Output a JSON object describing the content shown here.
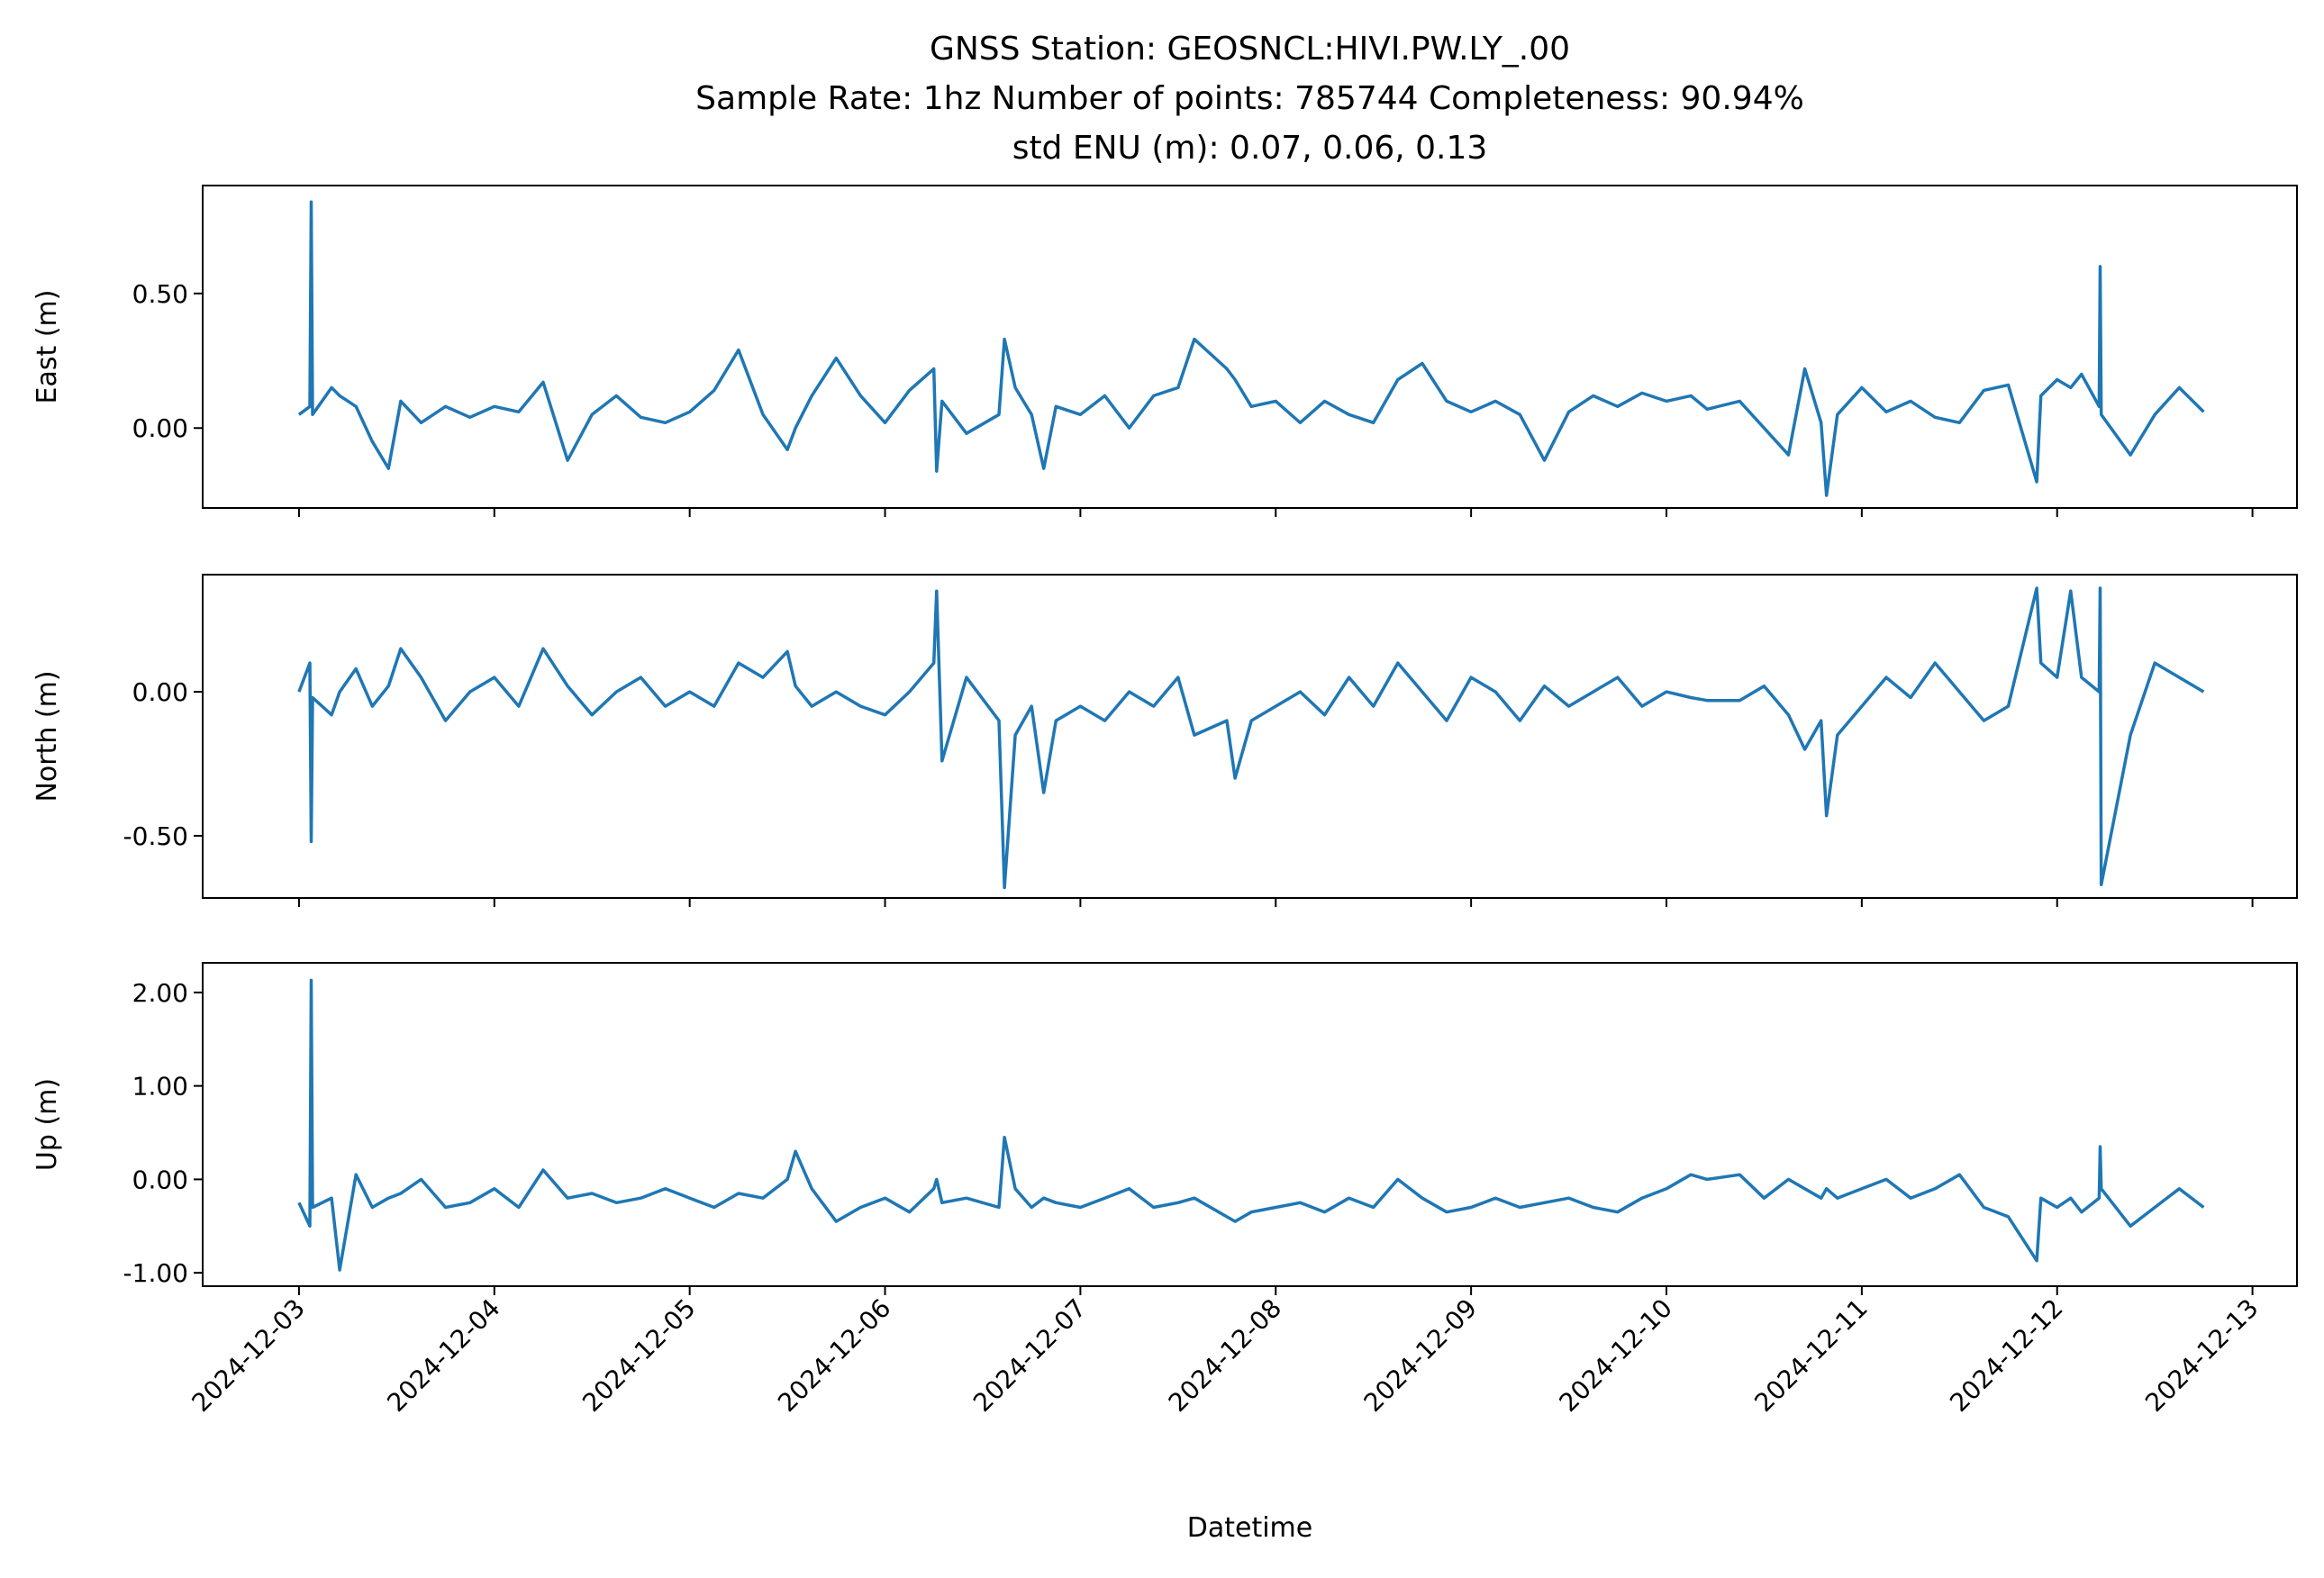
{
  "chart_data": [
    {
      "type": "line",
      "title": [
        "GNSS Station: GEOSNCL:HIVI.PW.LY_.00",
        "Sample Rate: 1hz   Number of points: 785744    Completeness:  90.94%",
        "std ENU (m):  0.07, 0.06, 0.13"
      ],
      "ylabel": "East (m)",
      "color": "#1f77b4",
      "xlim": [
        "2024-12-02 12:10",
        "2024-12-13 05:28"
      ],
      "ylim": [
        -0.297,
        0.901
      ],
      "yticks": [
        {
          "value": 0,
          "label": "0.00"
        },
        {
          "value": 0.5,
          "label": "0.50"
        }
      ],
      "x": [
        "2024-12-03 00:00",
        "2024-12-03 01:20",
        "2024-12-03 01:30",
        "2024-12-03 01:40",
        "2024-12-03 04:00",
        "2024-12-03 05:00",
        "2024-12-03 07:00",
        "2024-12-03 09:00",
        "2024-12-03 11:00",
        "2024-12-03 12:30",
        "2024-12-03 15:00",
        "2024-12-03 18:00",
        "2024-12-03 21:00",
        "2024-12-04 00:00",
        "2024-12-04 03:00",
        "2024-12-04 06:00",
        "2024-12-04 09:00",
        "2024-12-04 12:00",
        "2024-12-04 15:00",
        "2024-12-04 18:00",
        "2024-12-04 21:00",
        "2024-12-05 00:00",
        "2024-12-05 03:00",
        "2024-12-05 06:00",
        "2024-12-05 09:00",
        "2024-12-05 12:00",
        "2024-12-05 13:00",
        "2024-12-05 15:00",
        "2024-12-05 18:00",
        "2024-12-05 21:00",
        "2024-12-06 00:00",
        "2024-12-06 03:00",
        "2024-12-06 06:00",
        "2024-12-06 06:20",
        "2024-12-06 07:00",
        "2024-12-06 10:00",
        "2024-12-06 14:00",
        "2024-12-06 14:40",
        "2024-12-06 16:00",
        "2024-12-06 18:00",
        "2024-12-06 19:30",
        "2024-12-06 21:00",
        "2024-12-07 00:00",
        "2024-12-07 03:00",
        "2024-12-07 06:00",
        "2024-12-07 09:00",
        "2024-12-07 12:00",
        "2024-12-07 14:00",
        "2024-12-07 18:00",
        "2024-12-07 19:00",
        "2024-12-07 21:00",
        "2024-12-08 00:00",
        "2024-12-08 03:00",
        "2024-12-08 06:00",
        "2024-12-08 09:00",
        "2024-12-08 12:00",
        "2024-12-08 15:00",
        "2024-12-08 18:00",
        "2024-12-08 21:00",
        "2024-12-09 00:00",
        "2024-12-09 03:00",
        "2024-12-09 06:00",
        "2024-12-09 09:00",
        "2024-12-09 12:00",
        "2024-12-09 15:00",
        "2024-12-09 18:00",
        "2024-12-09 21:00",
        "2024-12-10 00:00",
        "2024-12-10 03:00",
        "2024-12-10 05:00",
        "2024-12-10 09:00",
        "2024-12-10 12:00",
        "2024-12-10 15:00",
        "2024-12-10 17:00",
        "2024-12-10 19:00",
        "2024-12-10 19:40",
        "2024-12-10 21:00",
        "2024-12-11 00:00",
        "2024-12-11 03:00",
        "2024-12-11 06:00",
        "2024-12-11 09:00",
        "2024-12-11 12:00",
        "2024-12-11 15:00",
        "2024-12-11 18:00",
        "2024-12-11 21:30",
        "2024-12-11 22:00",
        "2024-12-12 00:00",
        "2024-12-12 01:40",
        "2024-12-12 03:00",
        "2024-12-12 05:10",
        "2024-12-12 05:17",
        "2024-12-12 05:25",
        "2024-12-12 09:00",
        "2024-12-12 12:00",
        "2024-12-12 15:00",
        "2024-12-12 18:00"
      ],
      "values": [
        0.05,
        0.08,
        0.84,
        0.05,
        0.15,
        0.12,
        0.08,
        -0.05,
        -0.15,
        0.1,
        0.02,
        0.08,
        0.04,
        0.08,
        0.06,
        0.17,
        -0.12,
        0.05,
        0.12,
        0.04,
        0.02,
        0.06,
        0.14,
        0.29,
        0.05,
        -0.08,
        0.0,
        0.12,
        0.26,
        0.12,
        0.02,
        0.14,
        0.22,
        -0.16,
        0.1,
        -0.02,
        0.05,
        0.33,
        0.15,
        0.05,
        -0.15,
        0.08,
        0.05,
        0.12,
        0.0,
        0.12,
        0.15,
        0.33,
        0.22,
        0.18,
        0.08,
        0.1,
        0.02,
        0.1,
        0.05,
        0.02,
        0.18,
        0.24,
        0.1,
        0.06,
        0.1,
        0.05,
        -0.12,
        0.06,
        0.12,
        0.08,
        0.13,
        0.1,
        0.12,
        0.07,
        0.1,
        0.0,
        -0.1,
        0.22,
        0.02,
        -0.25,
        0.05,
        0.15,
        0.06,
        0.1,
        0.04,
        0.02,
        0.14,
        0.16,
        -0.2,
        0.12,
        0.18,
        0.15,
        0.2,
        0.08,
        0.6,
        0.05,
        -0.1,
        0.05,
        0.15,
        0.06
      ]
    },
    {
      "type": "line",
      "ylabel": "North (m)",
      "color": "#1f77b4",
      "xlim": [
        "2024-12-02 12:10",
        "2024-12-13 05:28"
      ],
      "ylim": [
        -0.716,
        0.407
      ],
      "yticks": [
        {
          "value": -0.5,
          "label": "-0.50"
        },
        {
          "value": 0,
          "label": "0.00"
        }
      ],
      "x": [
        "2024-12-03 00:00",
        "2024-12-03 01:20",
        "2024-12-03 01:30",
        "2024-12-03 01:40",
        "2024-12-03 04:00",
        "2024-12-03 05:00",
        "2024-12-03 07:00",
        "2024-12-03 09:00",
        "2024-12-03 11:00",
        "2024-12-03 12:30",
        "2024-12-03 15:00",
        "2024-12-03 18:00",
        "2024-12-03 21:00",
        "2024-12-04 00:00",
        "2024-12-04 03:00",
        "2024-12-04 06:00",
        "2024-12-04 09:00",
        "2024-12-04 12:00",
        "2024-12-04 15:00",
        "2024-12-04 18:00",
        "2024-12-04 21:00",
        "2024-12-05 00:00",
        "2024-12-05 03:00",
        "2024-12-05 06:00",
        "2024-12-05 09:00",
        "2024-12-05 12:00",
        "2024-12-05 13:00",
        "2024-12-05 15:00",
        "2024-12-05 18:00",
        "2024-12-05 21:00",
        "2024-12-06 00:00",
        "2024-12-06 03:00",
        "2024-12-06 06:00",
        "2024-12-06 06:20",
        "2024-12-06 07:00",
        "2024-12-06 10:00",
        "2024-12-06 14:00",
        "2024-12-06 14:40",
        "2024-12-06 16:00",
        "2024-12-06 18:00",
        "2024-12-06 19:30",
        "2024-12-06 21:00",
        "2024-12-07 00:00",
        "2024-12-07 03:00",
        "2024-12-07 06:00",
        "2024-12-07 09:00",
        "2024-12-07 12:00",
        "2024-12-07 14:00",
        "2024-12-07 18:00",
        "2024-12-07 19:00",
        "2024-12-07 21:00",
        "2024-12-08 00:00",
        "2024-12-08 03:00",
        "2024-12-08 06:00",
        "2024-12-08 09:00",
        "2024-12-08 12:00",
        "2024-12-08 15:00",
        "2024-12-08 18:00",
        "2024-12-08 21:00",
        "2024-12-09 00:00",
        "2024-12-09 03:00",
        "2024-12-09 06:00",
        "2024-12-09 09:00",
        "2024-12-09 12:00",
        "2024-12-09 15:00",
        "2024-12-09 18:00",
        "2024-12-09 21:00",
        "2024-12-10 00:00",
        "2024-12-10 03:00",
        "2024-12-10 05:00",
        "2024-12-10 09:00",
        "2024-12-10 12:00",
        "2024-12-10 15:00",
        "2024-12-10 17:00",
        "2024-12-10 19:00",
        "2024-12-10 19:40",
        "2024-12-10 21:00",
        "2024-12-11 00:00",
        "2024-12-11 03:00",
        "2024-12-11 06:00",
        "2024-12-11 09:00",
        "2024-12-11 12:00",
        "2024-12-11 15:00",
        "2024-12-11 18:00",
        "2024-12-11 21:30",
        "2024-12-11 22:00",
        "2024-12-12 00:00",
        "2024-12-12 01:40",
        "2024-12-12 03:00",
        "2024-12-12 05:10",
        "2024-12-12 05:17",
        "2024-12-12 05:25",
        "2024-12-12 09:00",
        "2024-12-12 12:00",
        "2024-12-12 15:00",
        "2024-12-12 18:00"
      ],
      "values": [
        0.0,
        0.1,
        -0.52,
        -0.02,
        -0.08,
        0.0,
        0.08,
        -0.05,
        0.02,
        0.15,
        0.05,
        -0.1,
        0.0,
        0.05,
        -0.05,
        0.15,
        0.02,
        -0.08,
        0.0,
        0.05,
        -0.05,
        0.0,
        -0.05,
        0.1,
        0.05,
        0.14,
        0.02,
        -0.05,
        0.0,
        -0.05,
        -0.08,
        0.0,
        0.1,
        0.35,
        -0.24,
        0.05,
        -0.1,
        -0.68,
        -0.15,
        -0.05,
        -0.35,
        -0.1,
        -0.05,
        -0.1,
        0.0,
        -0.05,
        0.05,
        -0.15,
        -0.1,
        -0.3,
        -0.1,
        -0.05,
        0.0,
        -0.08,
        0.05,
        -0.05,
        0.1,
        0.0,
        -0.1,
        0.05,
        0.0,
        -0.1,
        0.02,
        -0.05,
        0.0,
        0.05,
        -0.05,
        0.0,
        -0.02,
        -0.03,
        -0.03,
        0.02,
        -0.08,
        -0.2,
        -0.1,
        -0.43,
        -0.15,
        -0.05,
        0.05,
        -0.02,
        0.1,
        0.0,
        -0.1,
        -0.05,
        0.36,
        0.1,
        0.05,
        0.35,
        0.05,
        0.0,
        0.36,
        -0.67,
        -0.15,
        0.1,
        0.05,
        0.0
      ]
    },
    {
      "type": "line",
      "ylabel": "Up (m)",
      "xlabel": "Datetime",
      "color": "#1f77b4",
      "xlim": [
        "2024-12-02 12:10",
        "2024-12-13 05:28"
      ],
      "xticks": [
        "2024-12-03",
        "2024-12-04",
        "2024-12-05",
        "2024-12-06",
        "2024-12-07",
        "2024-12-08",
        "2024-12-09",
        "2024-12-10",
        "2024-12-11",
        "2024-12-12",
        "2024-12-13"
      ],
      "ylim": [
        -1.143,
        2.317
      ],
      "yticks": [
        {
          "value": -1,
          "label": "-1.00"
        },
        {
          "value": 0,
          "label": "0.00"
        },
        {
          "value": 1,
          "label": "1.00"
        },
        {
          "value": 2,
          "label": "2.00"
        }
      ],
      "x": [
        "2024-12-03 00:00",
        "2024-12-03 01:20",
        "2024-12-03 01:30",
        "2024-12-03 01:40",
        "2024-12-03 04:00",
        "2024-12-03 05:00",
        "2024-12-03 07:00",
        "2024-12-03 09:00",
        "2024-12-03 11:00",
        "2024-12-03 12:30",
        "2024-12-03 15:00",
        "2024-12-03 18:00",
        "2024-12-03 21:00",
        "2024-12-04 00:00",
        "2024-12-04 03:00",
        "2024-12-04 06:00",
        "2024-12-04 09:00",
        "2024-12-04 12:00",
        "2024-12-04 15:00",
        "2024-12-04 18:00",
        "2024-12-04 21:00",
        "2024-12-05 00:00",
        "2024-12-05 03:00",
        "2024-12-05 06:00",
        "2024-12-05 09:00",
        "2024-12-05 12:00",
        "2024-12-05 13:00",
        "2024-12-05 15:00",
        "2024-12-05 18:00",
        "2024-12-05 21:00",
        "2024-12-06 00:00",
        "2024-12-06 03:00",
        "2024-12-06 06:00",
        "2024-12-06 06:20",
        "2024-12-06 07:00",
        "2024-12-06 10:00",
        "2024-12-06 14:00",
        "2024-12-06 14:40",
        "2024-12-06 16:00",
        "2024-12-06 18:00",
        "2024-12-06 19:30",
        "2024-12-06 21:00",
        "2024-12-07 00:00",
        "2024-12-07 03:00",
        "2024-12-07 06:00",
        "2024-12-07 09:00",
        "2024-12-07 12:00",
        "2024-12-07 14:00",
        "2024-12-07 18:00",
        "2024-12-07 19:00",
        "2024-12-07 21:00",
        "2024-12-08 00:00",
        "2024-12-08 03:00",
        "2024-12-08 06:00",
        "2024-12-08 09:00",
        "2024-12-08 12:00",
        "2024-12-08 15:00",
        "2024-12-08 18:00",
        "2024-12-08 21:00",
        "2024-12-09 00:00",
        "2024-12-09 03:00",
        "2024-12-09 06:00",
        "2024-12-09 09:00",
        "2024-12-09 12:00",
        "2024-12-09 15:00",
        "2024-12-09 18:00",
        "2024-12-09 21:00",
        "2024-12-10 00:00",
        "2024-12-10 03:00",
        "2024-12-10 05:00",
        "2024-12-10 09:00",
        "2024-12-10 12:00",
        "2024-12-10 15:00",
        "2024-12-10 17:00",
        "2024-12-10 19:00",
        "2024-12-10 19:40",
        "2024-12-10 21:00",
        "2024-12-11 00:00",
        "2024-12-11 03:00",
        "2024-12-11 06:00",
        "2024-12-11 09:00",
        "2024-12-11 12:00",
        "2024-12-11 15:00",
        "2024-12-11 18:00",
        "2024-12-11 21:30",
        "2024-12-11 22:00",
        "2024-12-12 00:00",
        "2024-12-12 01:40",
        "2024-12-12 03:00",
        "2024-12-12 05:10",
        "2024-12-12 05:17",
        "2024-12-12 05:25",
        "2024-12-12 09:00",
        "2024-12-12 12:00",
        "2024-12-12 15:00",
        "2024-12-12 18:00"
      ],
      "values": [
        -0.25,
        -0.5,
        2.13,
        -0.3,
        -0.2,
        -0.97,
        0.05,
        -0.3,
        -0.2,
        -0.15,
        0.0,
        -0.3,
        -0.25,
        -0.1,
        -0.3,
        0.1,
        -0.2,
        -0.15,
        -0.25,
        -0.2,
        -0.1,
        -0.2,
        -0.3,
        -0.15,
        -0.2,
        0.0,
        0.3,
        -0.1,
        -0.45,
        -0.3,
        -0.2,
        -0.35,
        -0.1,
        0.0,
        -0.25,
        -0.2,
        -0.3,
        0.45,
        -0.1,
        -0.3,
        -0.2,
        -0.25,
        -0.3,
        -0.2,
        -0.1,
        -0.3,
        -0.25,
        -0.2,
        -0.4,
        -0.45,
        -0.35,
        -0.3,
        -0.25,
        -0.35,
        -0.2,
        -0.3,
        0.0,
        -0.2,
        -0.35,
        -0.3,
        -0.2,
        -0.3,
        -0.25,
        -0.2,
        -0.3,
        -0.35,
        -0.2,
        -0.1,
        0.05,
        0.0,
        0.05,
        -0.2,
        0.0,
        -0.1,
        -0.2,
        -0.1,
        -0.2,
        -0.1,
        0.0,
        -0.2,
        -0.1,
        0.05,
        -0.3,
        -0.4,
        -0.87,
        -0.2,
        -0.3,
        -0.2,
        -0.35,
        -0.2,
        0.35,
        -0.1,
        -0.5,
        -0.3,
        -0.1,
        -0.3
      ]
    }
  ]
}
